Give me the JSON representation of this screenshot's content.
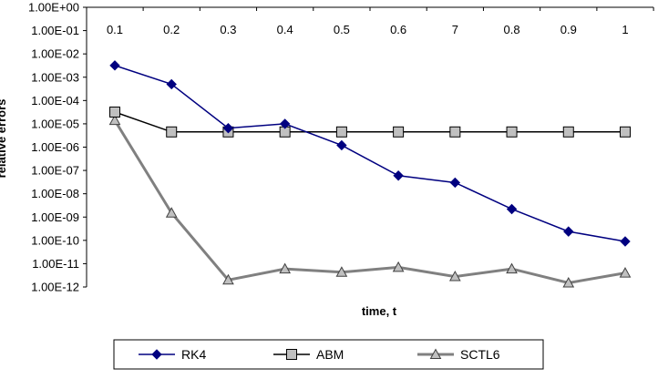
{
  "chart_data": {
    "type": "line",
    "xlabel": "time, t",
    "ylabel": "relative errors",
    "y_scale": "log",
    "ylim": [
      1e-12,
      1
    ],
    "y_tick_labels": [
      "1.00E+00",
      "1.00E-01",
      "1.00E-02",
      "1.00E-03",
      "1.00E-04",
      "1.00E-05",
      "1.00E-06",
      "1.00E-07",
      "1.00E-08",
      "1.00E-09",
      "1.00E-10",
      "1.00E-11",
      "1.00E-12"
    ],
    "categories": [
      "0.1",
      "0.2",
      "0.3",
      "0.4",
      "0.5",
      "0.6",
      "7",
      "0.8",
      "0.9",
      "1"
    ],
    "grid": false,
    "legend_position": "bottom",
    "series": [
      {
        "name": "RK4",
        "marker": "diamond",
        "color": "#000080",
        "values": [
          0.0032,
          0.0005,
          6.5e-06,
          1e-05,
          1.2e-06,
          6e-08,
          3e-08,
          2.2e-09,
          2.4e-10,
          9e-11
        ]
      },
      {
        "name": "ABM",
        "marker": "square",
        "color": "#000000",
        "marker_fill": "#c0c0c0",
        "values": [
          3.2e-05,
          4.5e-06,
          4.5e-06,
          4.5e-06,
          4.5e-06,
          4.5e-06,
          4.5e-06,
          4.5e-06,
          4.5e-06,
          4.5e-06
        ]
      },
      {
        "name": "SCTL6",
        "marker": "triangle",
        "color": "#808080",
        "marker_fill": "#c0c0c0",
        "values": [
          1.4e-05,
          1.5e-09,
          2e-12,
          6e-12,
          4.3e-12,
          7e-12,
          2.8e-12,
          6e-12,
          1.5e-12,
          4e-12
        ]
      }
    ]
  }
}
